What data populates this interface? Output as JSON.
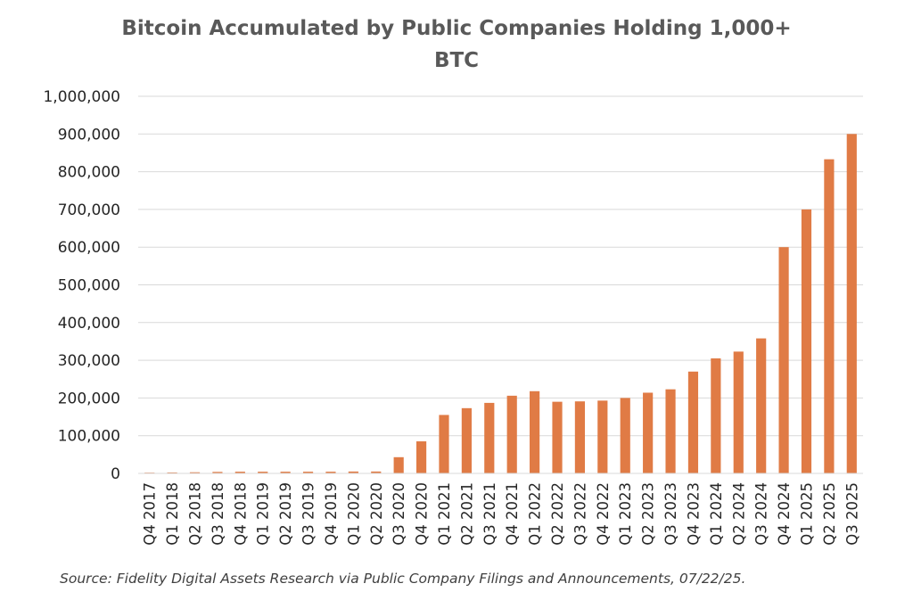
{
  "chart_data": {
    "type": "bar",
    "title": "Bitcoin Accumulated by Public Companies Holding 1,000+ BTC",
    "title_lines": [
      "Bitcoin Accumulated by Public Companies Holding 1,000+",
      "BTC"
    ],
    "categories": [
      "Q4 2017",
      "Q1 2018",
      "Q2 2018",
      "Q3 2018",
      "Q4 2018",
      "Q1 2019",
      "Q2 2019",
      "Q3 2019",
      "Q4 2019",
      "Q1 2020",
      "Q2 2020",
      "Q3 2020",
      "Q4 2020",
      "Q1 2021",
      "Q2 2021",
      "Q3 2021",
      "Q4 2021",
      "Q1 2022",
      "Q2 2022",
      "Q3 2022",
      "Q4 2022",
      "Q1 2023",
      "Q2 2023",
      "Q3 2023",
      "Q4 2023",
      "Q1 2024",
      "Q2 2024",
      "Q3 2024",
      "Q4 2024",
      "Q1 2025",
      "Q2 2025",
      "Q3 2025"
    ],
    "values": [
      2000,
      2500,
      3000,
      4000,
      4500,
      4500,
      4500,
      4500,
      4500,
      5000,
      5000,
      43000,
      85000,
      155000,
      173000,
      187000,
      206000,
      218000,
      190000,
      191000,
      193000,
      200000,
      214000,
      223000,
      270000,
      305000,
      323000,
      358000,
      600000,
      700000,
      833000,
      900000
    ],
    "ylim": [
      0,
      1000000
    ],
    "yticks": [
      0,
      100000,
      200000,
      300000,
      400000,
      500000,
      600000,
      700000,
      800000,
      900000,
      1000000
    ],
    "ytick_labels": [
      "0",
      "100,000",
      "200,000",
      "300,000",
      "400,000",
      "500,000",
      "600,000",
      "700,000",
      "800,000",
      "900,000",
      "1,000,000"
    ],
    "xlabel": "",
    "ylabel": "",
    "grid": true,
    "bar_color": "#E07B45",
    "grid_color": "#D9D9D9",
    "legend": "none"
  },
  "source_note": "Source: Fidelity Digital Assets Research via Public Company Filings and Announcements, 07/22/25."
}
